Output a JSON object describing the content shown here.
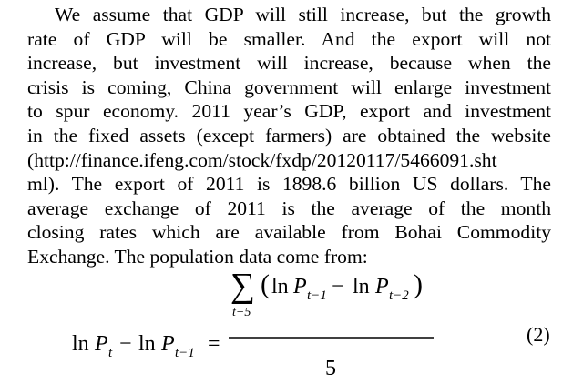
{
  "paragraph": {
    "lines": [
      "We assume that GDP will still increase, but the growth",
      "rate of GDP will be smaller. And the export will not",
      "increase, but investment will increase, because when the",
      "crisis is coming, China government will enlarge investment",
      "to spur economy. 2011 year’s GDP, export and investment",
      "in the fixed assets (except farmers) are obtained the website",
      "(http://finance.ifeng.com/stock/fxdp/20120117/5466091.sht",
      "ml). The export of 2011 is 1898.6 billion US dollars. The",
      "average exchange of 2011 is the average of the month",
      "closing rates which are available from Bohai Commodity",
      "Exchange. The population data come from:"
    ]
  },
  "equation": {
    "lhs_ln1": "ln",
    "lhs_p1": "P",
    "lhs_sub1": "t",
    "minus": "−",
    "lhs_ln2": "ln",
    "lhs_p2": "P",
    "lhs_sub2": "t−1",
    "equals": "=",
    "sum_upper": "t",
    "sum_symbol": "∑",
    "sum_lower": "t−5",
    "open_paren": "(",
    "num_ln1": "ln",
    "num_p1": "P",
    "num_sub1": "t−1",
    "num_minus": "−",
    "num_ln2": "ln",
    "num_p2": "P",
    "num_sub2": "t−2",
    "close_paren": ")",
    "denominator": "5",
    "number": "(2)"
  }
}
